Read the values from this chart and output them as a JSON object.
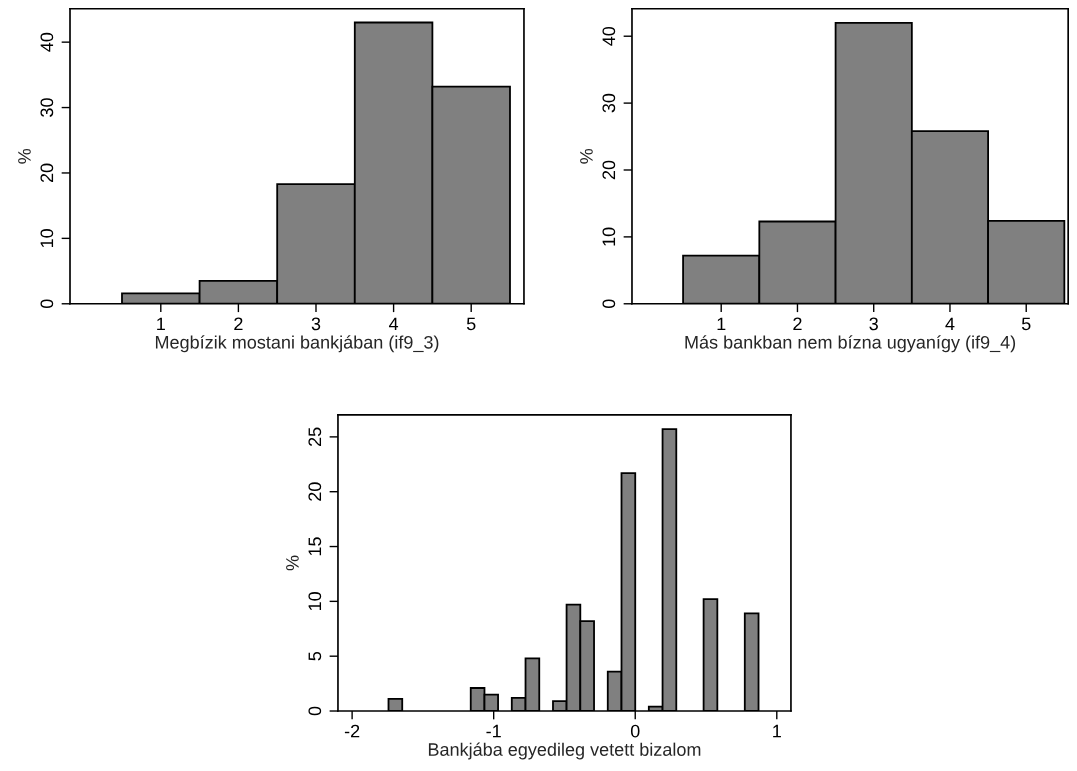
{
  "chart_data": [
    {
      "type": "histogram",
      "xlabel": "Megbízik mostani bankjában (if9_3)",
      "ylabel": "%",
      "color": "#808080",
      "bins": [
        0.5,
        1.5,
        2.5,
        3.5,
        4.5,
        5.5
      ],
      "values": [
        1.6,
        3.5,
        18.3,
        43.0,
        33.2
      ],
      "xlim": [
        -0.17,
        5.68
      ],
      "xticks": [
        1,
        2,
        3,
        4,
        5
      ],
      "ylim": [
        0,
        45.1
      ],
      "yticks": [
        0,
        10,
        20,
        30,
        40
      ],
      "grid": false
    },
    {
      "type": "histogram",
      "xlabel": "Más bankban nem bízna ugyanígy (if9_4)",
      "ylabel": "%",
      "color": "#808080",
      "bins": [
        0.5,
        1.5,
        2.5,
        3.5,
        4.5,
        5.5
      ],
      "values": [
        7.2,
        12.3,
        42.0,
        25.8,
        12.4
      ],
      "xlim": [
        -0.17,
        5.55
      ],
      "xticks": [
        1,
        2,
        3,
        4,
        5
      ],
      "ylim": [
        0,
        44.1
      ],
      "yticks": [
        0,
        10,
        20,
        30,
        40
      ],
      "grid": false
    },
    {
      "type": "histogram",
      "xlabel": "Bankjába egyedileg vetett bizalom",
      "ylabel": "%",
      "color": "#808080",
      "bins": [
        -1.743,
        -1.646,
        -1.549,
        -1.453,
        -1.356,
        -1.259,
        -1.162,
        -1.065,
        -0.969,
        -0.872,
        -0.775,
        -0.678,
        -0.581,
        -0.485,
        -0.388,
        -0.291,
        -0.194,
        -0.097,
        0.0,
        0.096,
        0.193,
        0.29,
        0.387,
        0.483,
        0.58,
        0.677,
        0.774,
        0.871
      ],
      "values": [
        1.1,
        0,
        0,
        0,
        0,
        0,
        2.1,
        1.5,
        0,
        1.2,
        4.8,
        0,
        0.9,
        9.7,
        8.2,
        0,
        3.6,
        21.7,
        0,
        0.4,
        25.7,
        0,
        0,
        10.2,
        0,
        0,
        8.9
      ],
      "xlim": [
        -2.1,
        1.1
      ],
      "xticks": [
        -2,
        -1,
        0,
        1
      ],
      "ylim": [
        0,
        27.0
      ],
      "yticks": [
        0,
        5,
        10,
        15,
        20,
        25
      ],
      "grid": false
    }
  ]
}
